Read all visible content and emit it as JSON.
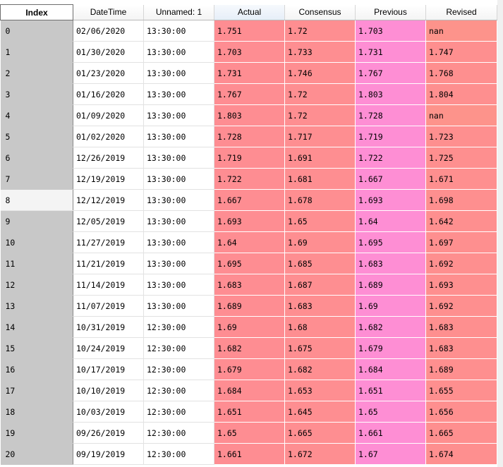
{
  "columns": {
    "index": "Index",
    "datetime": "DateTime",
    "unnamed": "Unnamed: 1",
    "actual": "Actual",
    "consensus": "Consensus",
    "previous": "Previous",
    "revised": "Revised"
  },
  "selected_row": 8,
  "rows": [
    {
      "index": "0",
      "datetime": "02/06/2020",
      "time": "13:30:00",
      "actual": "1.751",
      "consensus": "1.72",
      "previous": "1.703",
      "revised": "nan"
    },
    {
      "index": "1",
      "datetime": "01/30/2020",
      "time": "13:30:00",
      "actual": "1.703",
      "consensus": "1.733",
      "previous": "1.731",
      "revised": "1.747"
    },
    {
      "index": "2",
      "datetime": "01/23/2020",
      "time": "13:30:00",
      "actual": "1.731",
      "consensus": "1.746",
      "previous": "1.767",
      "revised": "1.768"
    },
    {
      "index": "3",
      "datetime": "01/16/2020",
      "time": "13:30:00",
      "actual": "1.767",
      "consensus": "1.72",
      "previous": "1.803",
      "revised": "1.804"
    },
    {
      "index": "4",
      "datetime": "01/09/2020",
      "time": "13:30:00",
      "actual": "1.803",
      "consensus": "1.72",
      "previous": "1.728",
      "revised": "nan"
    },
    {
      "index": "5",
      "datetime": "01/02/2020",
      "time": "13:30:00",
      "actual": "1.728",
      "consensus": "1.717",
      "previous": "1.719",
      "revised": "1.723"
    },
    {
      "index": "6",
      "datetime": "12/26/2019",
      "time": "13:30:00",
      "actual": "1.719",
      "consensus": "1.691",
      "previous": "1.722",
      "revised": "1.725"
    },
    {
      "index": "7",
      "datetime": "12/19/2019",
      "time": "13:30:00",
      "actual": "1.722",
      "consensus": "1.681",
      "previous": "1.667",
      "revised": "1.671"
    },
    {
      "index": "8",
      "datetime": "12/12/2019",
      "time": "13:30:00",
      "actual": "1.667",
      "consensus": "1.678",
      "previous": "1.693",
      "revised": "1.698"
    },
    {
      "index": "9",
      "datetime": "12/05/2019",
      "time": "13:30:00",
      "actual": "1.693",
      "consensus": "1.65",
      "previous": "1.64",
      "revised": "1.642"
    },
    {
      "index": "10",
      "datetime": "11/27/2019",
      "time": "13:30:00",
      "actual": "1.64",
      "consensus": "1.69",
      "previous": "1.695",
      "revised": "1.697"
    },
    {
      "index": "11",
      "datetime": "11/21/2019",
      "time": "13:30:00",
      "actual": "1.695",
      "consensus": "1.685",
      "previous": "1.683",
      "revised": "1.692"
    },
    {
      "index": "12",
      "datetime": "11/14/2019",
      "time": "13:30:00",
      "actual": "1.683",
      "consensus": "1.687",
      "previous": "1.689",
      "revised": "1.693"
    },
    {
      "index": "13",
      "datetime": "11/07/2019",
      "time": "13:30:00",
      "actual": "1.689",
      "consensus": "1.683",
      "previous": "1.69",
      "revised": "1.692"
    },
    {
      "index": "14",
      "datetime": "10/31/2019",
      "time": "12:30:00",
      "actual": "1.69",
      "consensus": "1.68",
      "previous": "1.682",
      "revised": "1.683"
    },
    {
      "index": "15",
      "datetime": "10/24/2019",
      "time": "12:30:00",
      "actual": "1.682",
      "consensus": "1.675",
      "previous": "1.679",
      "revised": "1.683"
    },
    {
      "index": "16",
      "datetime": "10/17/2019",
      "time": "12:30:00",
      "actual": "1.679",
      "consensus": "1.682",
      "previous": "1.684",
      "revised": "1.689"
    },
    {
      "index": "17",
      "datetime": "10/10/2019",
      "time": "12:30:00",
      "actual": "1.684",
      "consensus": "1.653",
      "previous": "1.651",
      "revised": "1.655"
    },
    {
      "index": "18",
      "datetime": "10/03/2019",
      "time": "12:30:00",
      "actual": "1.651",
      "consensus": "1.645",
      "previous": "1.65",
      "revised": "1.656"
    },
    {
      "index": "19",
      "datetime": "09/26/2019",
      "time": "12:30:00",
      "actual": "1.65",
      "consensus": "1.665",
      "previous": "1.661",
      "revised": "1.665"
    },
    {
      "index": "20",
      "datetime": "09/19/2019",
      "time": "12:30:00",
      "actual": "1.661",
      "consensus": "1.672",
      "previous": "1.67",
      "revised": "1.674"
    }
  ]
}
